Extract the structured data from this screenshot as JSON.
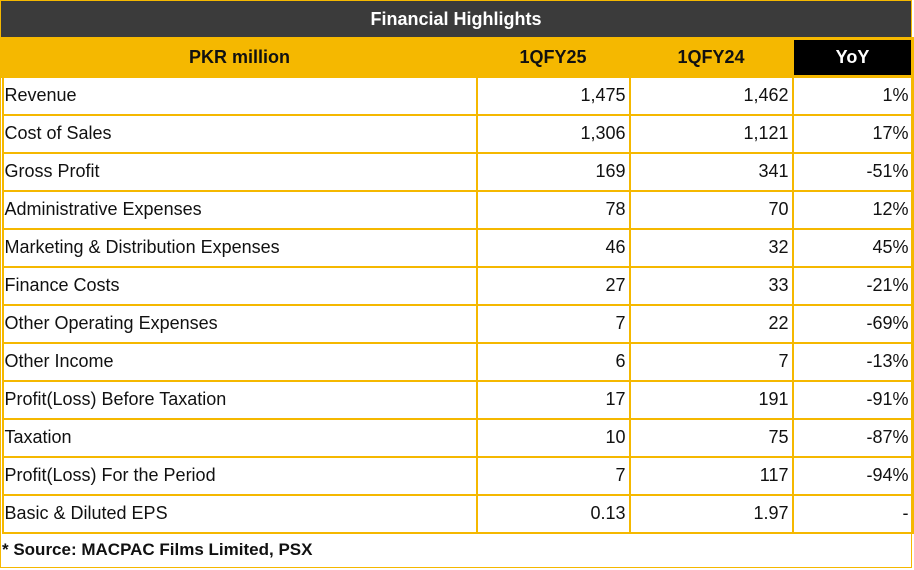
{
  "title": "Financial Highlights",
  "headers": [
    "PKR million",
    "1QFY25",
    "1QFY24",
    "YoY"
  ],
  "rows": [
    {
      "label": "Revenue",
      "q25": "1,475",
      "q24": "1,462",
      "yoy": "1%"
    },
    {
      "label": "Cost of Sales",
      "q25": "1,306",
      "q24": "1,121",
      "yoy": "17%"
    },
    {
      "label": "Gross Profit",
      "q25": "169",
      "q24": "341",
      "yoy": "-51%"
    },
    {
      "label": "Administrative Expenses",
      "q25": "78",
      "q24": "70",
      "yoy": "12%"
    },
    {
      "label": "Marketing & Distribution Expenses",
      "q25": "46",
      "q24": "32",
      "yoy": "45%"
    },
    {
      "label": "Finance Costs",
      "q25": "27",
      "q24": "33",
      "yoy": "-21%"
    },
    {
      "label": "Other Operating Expenses",
      "q25": "7",
      "q24": "22",
      "yoy": "-69%"
    },
    {
      "label": "Other Income",
      "q25": "6",
      "q24": "7",
      "yoy": "-13%"
    },
    {
      "label": "Profit(Loss) Before Taxation",
      "q25": "17",
      "q24": "191",
      "yoy": "-91%"
    },
    {
      "label": "Taxation",
      "q25": "10",
      "q24": "75",
      "yoy": "-87%"
    },
    {
      "label": "Profit(Loss) For the Period",
      "q25": "7",
      "q24": "117",
      "yoy": "-94%"
    },
    {
      "label": "Basic & Diluted EPS",
      "q25": "0.13",
      "q24": "1.97",
      "yoy": "-"
    }
  ],
  "source": "* Source: MACPAC Films Limited, PSX",
  "colors": {
    "accent": "#f5b800",
    "title_bg": "#3b3b3b",
    "yoy_header_bg": "#000000"
  }
}
